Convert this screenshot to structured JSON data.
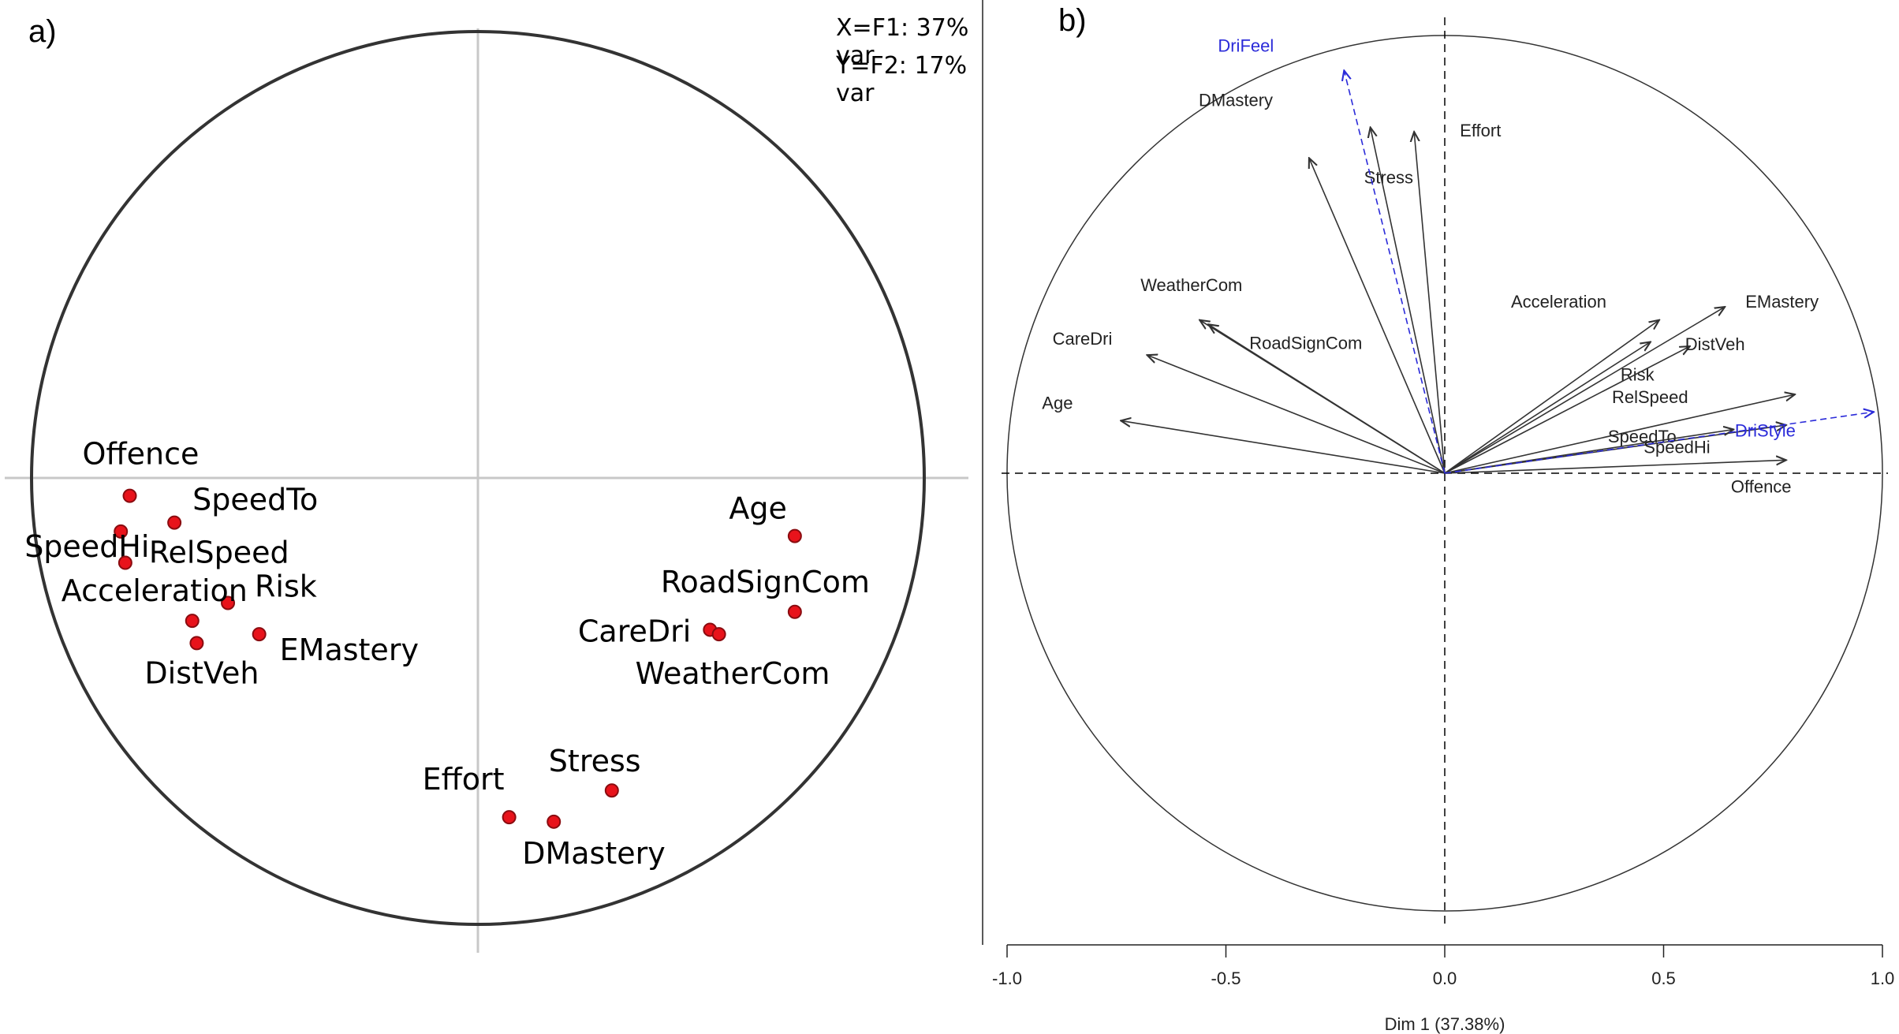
{
  "panel_a": {
    "label": "a)",
    "variance_x": "X=F1: 37% var",
    "variance_y": "Y=F2: 17% var"
  },
  "panel_b": {
    "label": "b)",
    "xlabel": "Dim 1 (37.38%)"
  },
  "colors": {
    "point": "#e8131b",
    "point_outline": "#8a0c10",
    "arrow": "#333333",
    "supplementary_arrow": "#2b2bd9",
    "axis_dashed": "#000000",
    "crosshair": "#c8c8c8"
  },
  "chart_data": [
    {
      "type": "scatter",
      "panel": "a)",
      "title": "",
      "xlabel": "",
      "ylabel": "",
      "xlim": [
        -1,
        1
      ],
      "ylim": [
        -1,
        1
      ],
      "unit_circle": true,
      "points": [
        {
          "label": "Offence",
          "x": -0.78,
          "y": -0.04
        },
        {
          "label": "SpeedHi",
          "x": -0.8,
          "y": -0.12
        },
        {
          "label": "SpeedTo",
          "x": -0.68,
          "y": -0.1
        },
        {
          "label": "RelSpeed",
          "x": -0.79,
          "y": -0.19
        },
        {
          "label": "Risk",
          "x": -0.56,
          "y": -0.28
        },
        {
          "label": "Acceleration",
          "x": -0.64,
          "y": -0.32
        },
        {
          "label": "DistVeh",
          "x": -0.63,
          "y": -0.37
        },
        {
          "label": "EMastery",
          "x": -0.49,
          "y": -0.35
        },
        {
          "label": "Age",
          "x": 0.71,
          "y": -0.13
        },
        {
          "label": "RoadSignCom",
          "x": 0.71,
          "y": -0.3
        },
        {
          "label": "CareDri",
          "x": 0.52,
          "y": -0.34
        },
        {
          "label": "WeatherCom",
          "x": 0.54,
          "y": -0.35
        },
        {
          "label": "Stress",
          "x": 0.3,
          "y": -0.7
        },
        {
          "label": "Effort",
          "x": 0.07,
          "y": -0.76
        },
        {
          "label": "DMastery",
          "x": 0.17,
          "y": -0.77
        }
      ]
    },
    {
      "type": "line",
      "panel": "b)",
      "title": "",
      "xlabel": "Dim 1 (37.38%)",
      "ylabel": "",
      "xlim": [
        -1,
        1
      ],
      "ylim": [
        -1,
        1
      ],
      "xticks": [
        "-1.0",
        "-0.5",
        "0.0",
        "0.5",
        "1.0"
      ],
      "unit_circle": true,
      "arrows": [
        {
          "label": "Age",
          "x": -0.74,
          "y": 0.12
        },
        {
          "label": "CareDri",
          "x": -0.68,
          "y": 0.27
        },
        {
          "label": "WeatherCom",
          "x": -0.56,
          "y": 0.35
        },
        {
          "label": "RoadSignCom",
          "x": -0.54,
          "y": 0.34
        },
        {
          "label": "DMastery",
          "x": -0.31,
          "y": 0.72
        },
        {
          "label": "Stress",
          "x": -0.17,
          "y": 0.79
        },
        {
          "label": "Effort",
          "x": -0.07,
          "y": 0.78
        },
        {
          "label": "Acceleration",
          "x": 0.49,
          "y": 0.35
        },
        {
          "label": "Risk",
          "x": 0.47,
          "y": 0.3
        },
        {
          "label": "EMastery",
          "x": 0.64,
          "y": 0.38
        },
        {
          "label": "DistVeh",
          "x": 0.56,
          "y": 0.29
        },
        {
          "label": "RelSpeed",
          "x": 0.8,
          "y": 0.18
        },
        {
          "label": "SpeedTo",
          "x": 0.78,
          "y": 0.11
        },
        {
          "label": "SpeedHi",
          "x": 0.66,
          "y": 0.1
        },
        {
          "label": "Offence",
          "x": 0.78,
          "y": 0.03
        }
      ],
      "supplementary_arrows": [
        {
          "label": "DriFeel",
          "x": -0.23,
          "y": 0.92
        },
        {
          "label": "DriStyle",
          "x": 0.98,
          "y": 0.14
        }
      ]
    }
  ]
}
